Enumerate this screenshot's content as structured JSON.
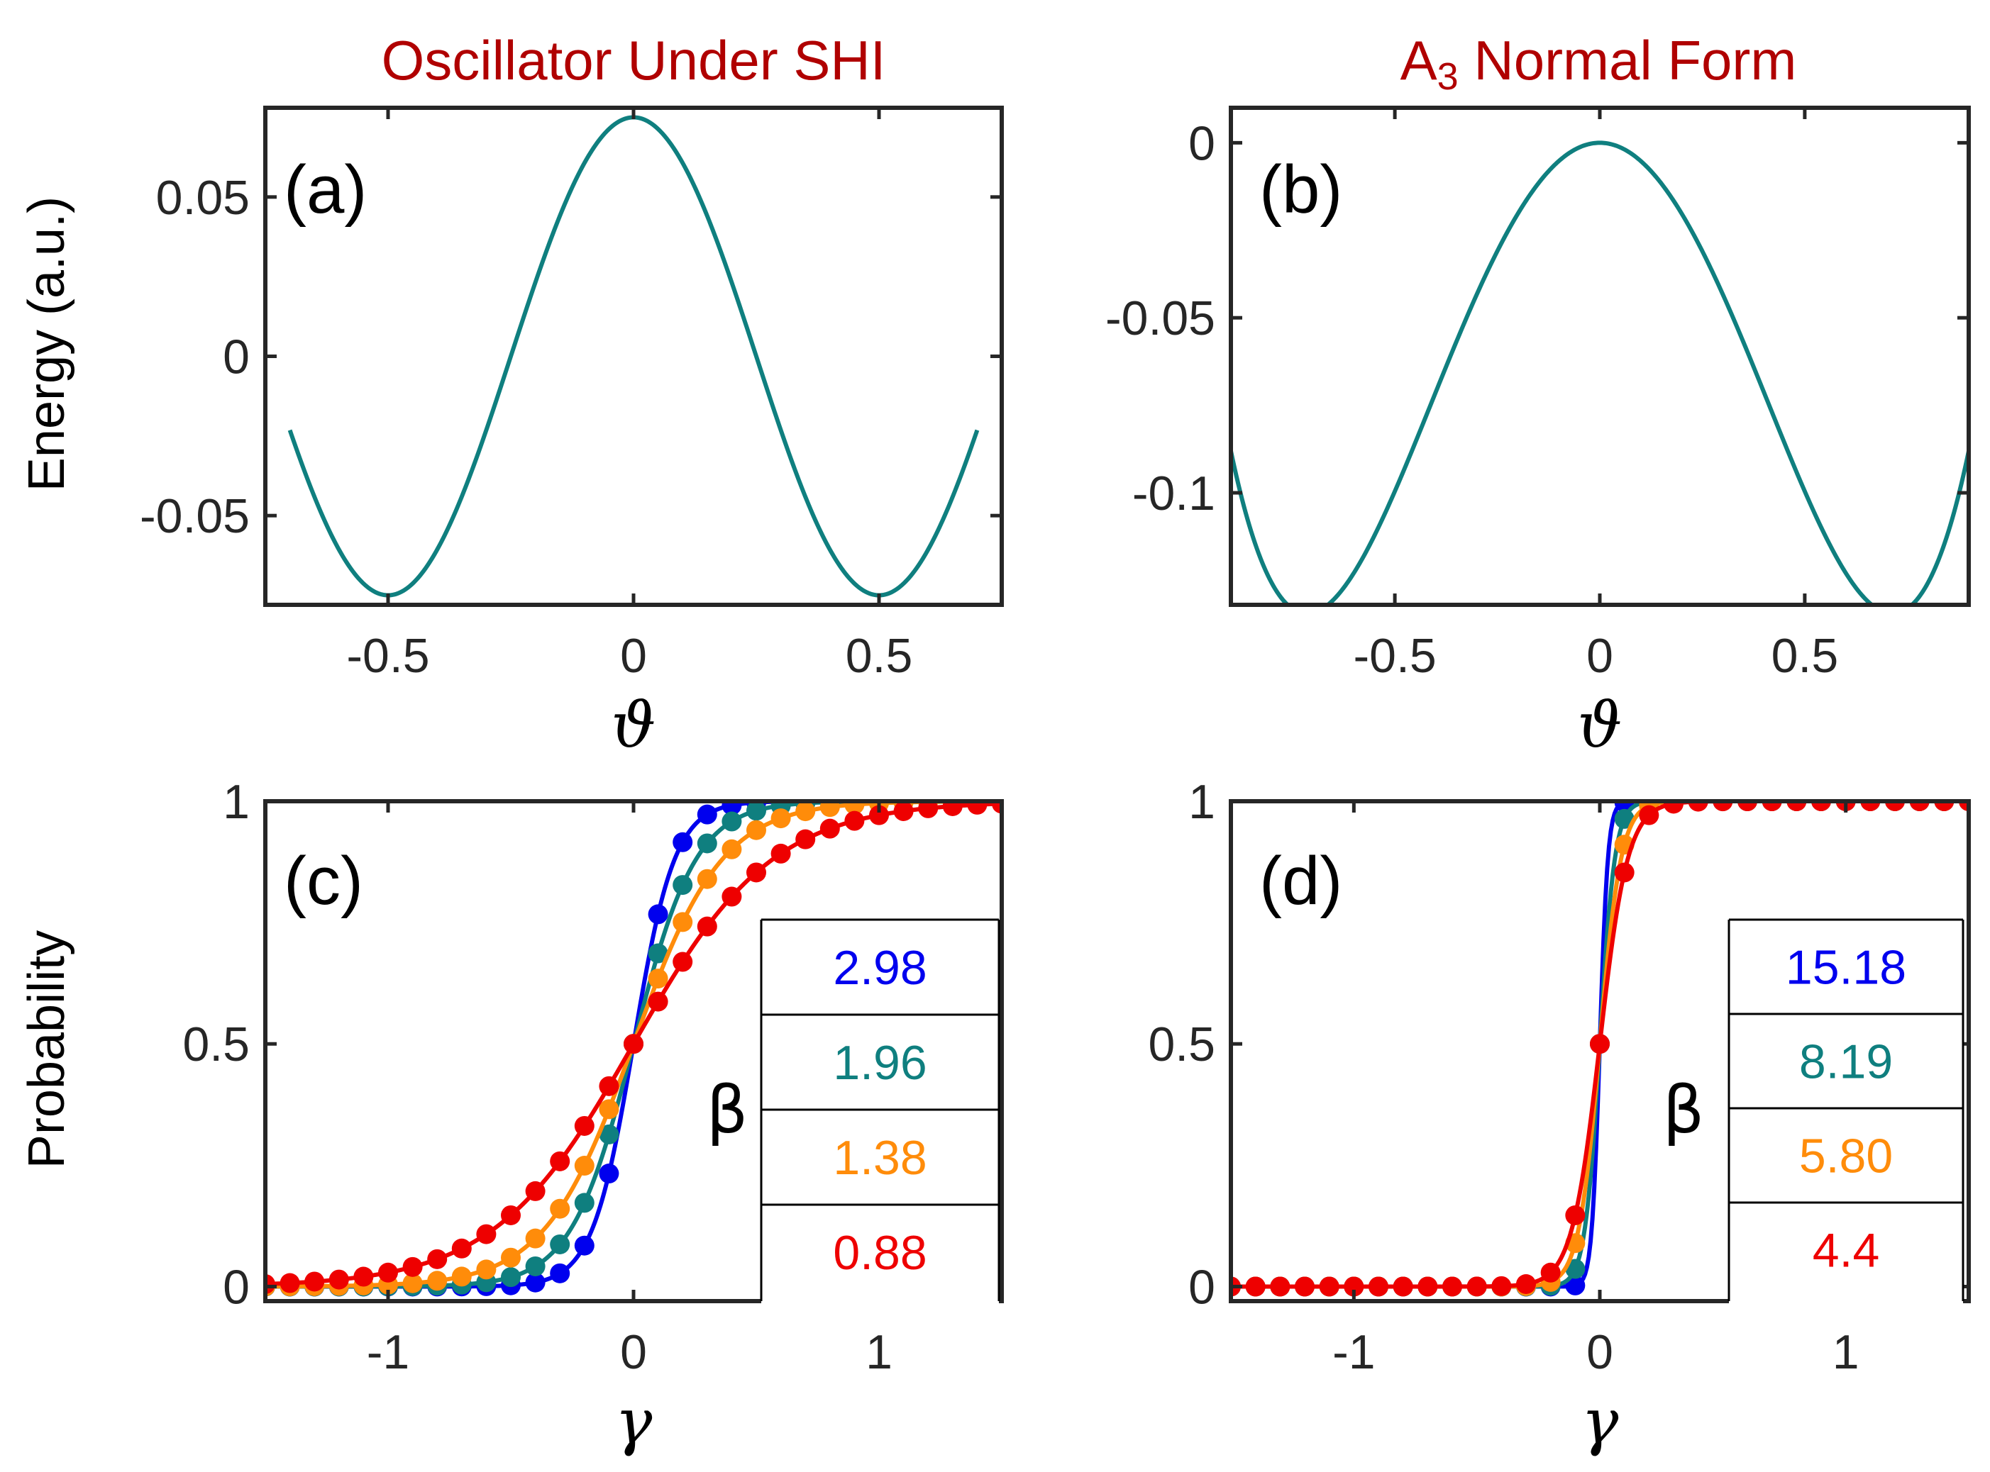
{
  "titles": {
    "left": "Oscillator Under SHI",
    "right_main": "A",
    "right_sub": "3",
    "right_rest": " Normal Form"
  },
  "colors": {
    "teal": "#0f7f7f",
    "blue": "#0000ee",
    "orange": "#ff8c0a",
    "red": "#ee0000",
    "title": "#b00000",
    "axis": "#262626"
  },
  "chart_data": [
    {
      "id": "a",
      "type": "line",
      "tag": "(a)",
      "xlabel": "ϑ",
      "ylabel": "Energy (a.u.)",
      "xlim": [
        -0.75,
        0.75
      ],
      "ylim": [
        -0.078,
        0.078
      ],
      "xticks": [
        -0.5,
        0,
        0.5
      ],
      "xtick_labels": [
        "-0.5",
        "0",
        "0.5"
      ],
      "yticks": [
        -0.05,
        0,
        0.05
      ],
      "ytick_labels": [
        "-0.05",
        "0",
        "0.05"
      ],
      "series": [
        {
          "name": "energy",
          "color": "teal",
          "model": "cos2pi",
          "amp": 0.075,
          "xrange": [
            -0.7,
            0.7
          ]
        }
      ]
    },
    {
      "id": "b",
      "type": "line",
      "tag": "(b)",
      "xlabel": "ϑ",
      "ylabel": "",
      "xlim": [
        -0.9,
        0.9
      ],
      "ylim": [
        -0.132,
        0.01
      ],
      "xticks": [
        -0.5,
        0,
        0.5
      ],
      "xtick_labels": [
        "-0.5",
        "0",
        "0.5"
      ],
      "yticks": [
        -0.1,
        -0.05,
        0
      ],
      "ytick_labels": [
        "-0.1",
        "-0.05",
        "0"
      ],
      "series": [
        {
          "name": "normal-form",
          "color": "teal",
          "model": "quartic",
          "a": 0.517,
          "b": 0.5275,
          "xrange": [
            -0.9,
            0.9
          ]
        }
      ]
    },
    {
      "id": "c",
      "type": "line",
      "tag": "(c)",
      "xlabel": "γ",
      "ylabel": "Probability",
      "xlim": [
        -1.5,
        1.5
      ],
      "ylim": [
        -0.03,
        1.0
      ],
      "xticks": [
        -1,
        0,
        1
      ],
      "xtick_labels": [
        "-1",
        "0",
        "1"
      ],
      "yticks": [
        0,
        0.5,
        1
      ],
      "ytick_labels": [
        "0",
        "0.5",
        "1"
      ],
      "beta_symbol": "β",
      "marker_x": {
        "start": -1.5,
        "end": 1.5,
        "step": 0.1
      },
      "series": [
        {
          "name": "2.98",
          "color": "blue",
          "beta": 2.98
        },
        {
          "name": "1.96",
          "color": "teal",
          "beta": 1.96
        },
        {
          "name": "1.38",
          "color": "orange",
          "beta": 1.38
        },
        {
          "name": "0.88",
          "color": "red",
          "beta": 0.88
        }
      ]
    },
    {
      "id": "d",
      "type": "line",
      "tag": "(d)",
      "xlabel": "γ",
      "ylabel": "",
      "xlim": [
        -1.5,
        1.5
      ],
      "ylim": [
        -0.03,
        1.0
      ],
      "xticks": [
        -1,
        0,
        1
      ],
      "xtick_labels": [
        "-1",
        "0",
        "1"
      ],
      "yticks": [
        0,
        0.5,
        1
      ],
      "ytick_labels": [
        "0",
        "0.5",
        "1"
      ],
      "beta_symbol": "β",
      "marker_x": {
        "start": -1.5,
        "end": 1.5,
        "step": 0.1
      },
      "series": [
        {
          "name": "15.18",
          "color": "blue",
          "beta": 15.18
        },
        {
          "name": "8.19",
          "color": "teal",
          "beta": 8.19
        },
        {
          "name": "5.80",
          "color": "orange",
          "beta": 5.8
        },
        {
          "name": "4.4",
          "color": "red",
          "beta": 4.4
        }
      ]
    }
  ]
}
